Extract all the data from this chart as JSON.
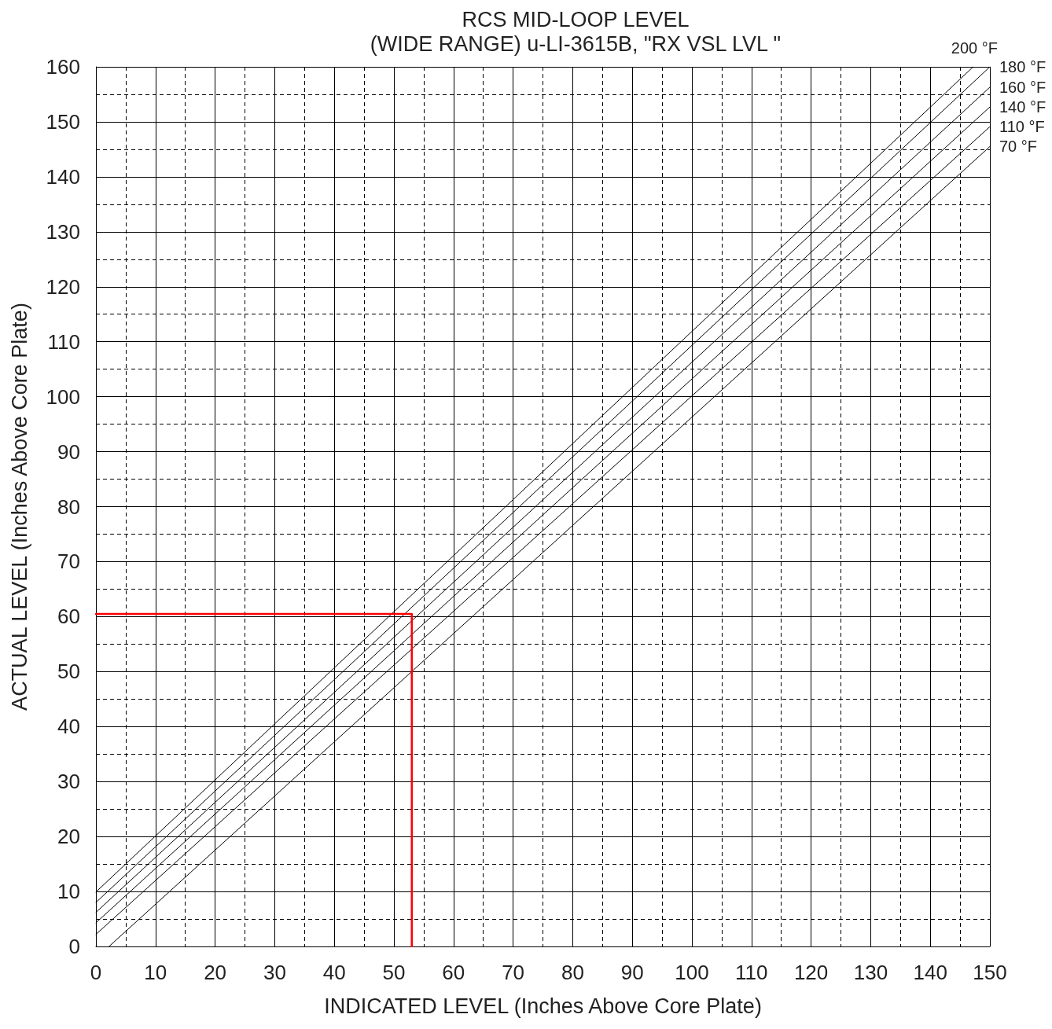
{
  "chart_data": {
    "type": "line",
    "title": "RCS MID-LOOP LEVEL",
    "subtitle": "(WIDE RANGE) u-LI-3615B, \"RX VSL LVL \"",
    "xlabel": "INDICATED LEVEL (Inches Above Core Plate)",
    "ylabel": "ACTUAL LEVEL (Inches Above Core Plate)",
    "xlim": [
      0,
      150
    ],
    "ylim": [
      0,
      160
    ],
    "xticks": [
      0,
      10,
      20,
      30,
      40,
      50,
      60,
      70,
      80,
      90,
      100,
      110,
      120,
      130,
      140,
      150
    ],
    "yticks": [
      0,
      10,
      20,
      30,
      40,
      50,
      60,
      70,
      80,
      90,
      100,
      110,
      120,
      130,
      140,
      150,
      160
    ],
    "grid": true,
    "marker": "none",
    "line_style": "solid",
    "legend": false,
    "series": [
      {
        "name": "200 °F",
        "color": "#000000",
        "x": [
          0,
          147.2
        ],
        "values": [
          9.9,
          160
        ]
      },
      {
        "name": "180 °F",
        "color": "#000000",
        "x": [
          0,
          150
        ],
        "values": [
          8,
          160
        ]
      },
      {
        "name": "160 °F",
        "color": "#000000",
        "x": [
          0,
          150
        ],
        "values": [
          6.2,
          156.3
        ]
      },
      {
        "name": "140 °F",
        "color": "#000000",
        "x": [
          0,
          150
        ],
        "values": [
          4.3,
          152.7
        ]
      },
      {
        "name": "110 °F",
        "color": "#000000",
        "x": [
          0,
          150
        ],
        "values": [
          2.2,
          149.1
        ]
      },
      {
        "name": "70 °F",
        "color": "#000000",
        "x": [
          2.2,
          150
        ],
        "values": [
          0,
          145.5
        ]
      },
      {
        "color": "#ff0000",
        "x": [
          0,
          53,
          53
        ],
        "values": [
          60.5,
          60.5,
          0
        ]
      }
    ]
  }
}
